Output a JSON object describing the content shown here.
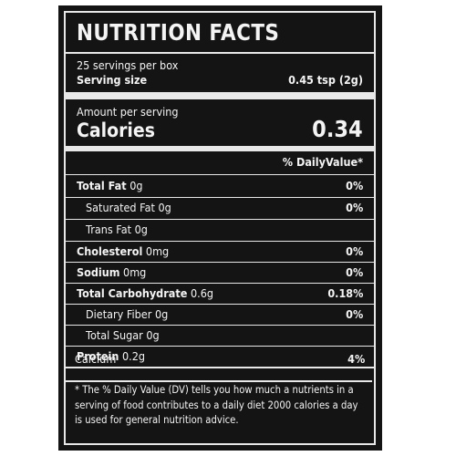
{
  "title": "NUTRITION FACTS",
  "servings_per_box": "25 servings per box",
  "serving_size": {
    "label": "Serving size",
    "value": "0.45 tsp (2g)"
  },
  "amount_per_serving": "Amount per serving",
  "calories": {
    "label": "Calories",
    "value": "0.34"
  },
  "daily_value_header": "% DailyValue*",
  "rows": [
    {
      "name": "Total Fat",
      "amount": "0g",
      "dv": "0%"
    },
    {
      "name": "Saturated Fat",
      "amount": "0g",
      "dv": "0%"
    },
    {
      "name": "Trans Fat",
      "amount": "0g",
      "dv": ""
    },
    {
      "name": "Cholesterol",
      "amount": "0mg",
      "dv": "0%"
    },
    {
      "name": "Sodium",
      "amount": "0mg",
      "dv": "0%"
    },
    {
      "name": "Total Carbohydrate",
      "amount": "0.6g",
      "dv": "0.18%"
    },
    {
      "name": "Dietary Fiber",
      "amount": "0g",
      "dv": "0%"
    },
    {
      "name": "Total Sugar",
      "amount": "0g",
      "dv": ""
    },
    {
      "name": "Protein",
      "amount": "0.2g",
      "dv": ""
    },
    {
      "name": "Calcium",
      "amount": "",
      "dv": "4%"
    }
  ],
  "footnote": "* The % Daily Value (DV) tells you how much a nutrients in a serving of food contributes to a daily diet 2000 calories a day is used for general nutrition advice.",
  "colors": {
    "background": "#141414",
    "text": "#f4f4f4",
    "page": "#ffffff"
  }
}
